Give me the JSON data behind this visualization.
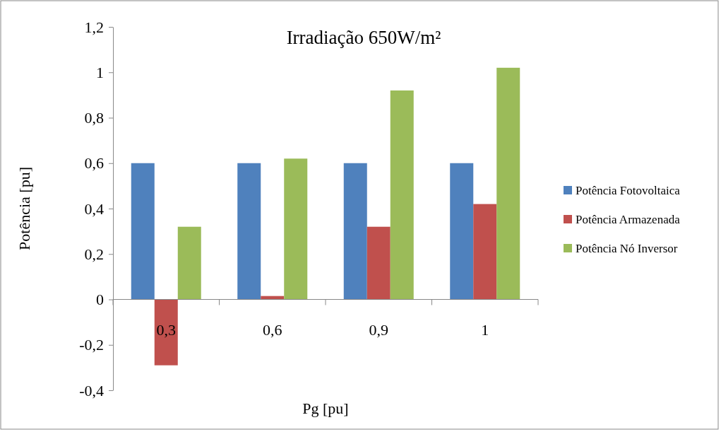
{
  "chart_data": {
    "type": "bar",
    "title": "Irradiação 650W/m²",
    "xlabel": "Pg [pu]",
    "ylabel": "Potência [pu]",
    "categories": [
      "0,3",
      "0,6",
      "0,9",
      "1"
    ],
    "series": [
      {
        "name": "Potência Fotovoltaica",
        "color": "#4f81bd",
        "values": [
          0.6,
          0.6,
          0.6,
          0.6
        ]
      },
      {
        "name": "Potência Armazenada",
        "color": "#c0504d",
        "values": [
          -0.29,
          0.015,
          0.32,
          0.42
        ]
      },
      {
        "name": "Potência Nó Inversor",
        "color": "#9bbb59",
        "values": [
          0.32,
          0.62,
          0.92,
          1.02
        ]
      }
    ],
    "ylim": [
      -0.4,
      1.2
    ],
    "yticks": [
      {
        "value": -0.4,
        "label": "-0,4"
      },
      {
        "value": -0.2,
        "label": "-0,2"
      },
      0,
      {
        "value": 0.2,
        "label": "0,2"
      },
      {
        "value": 0.4,
        "label": "0,4"
      },
      {
        "value": 0.6,
        "label": "0,6"
      },
      {
        "value": 0.8,
        "label": "0,8"
      },
      1,
      {
        "value": 1.2,
        "label": "1,2"
      }
    ],
    "grid": false,
    "legend": "right"
  }
}
